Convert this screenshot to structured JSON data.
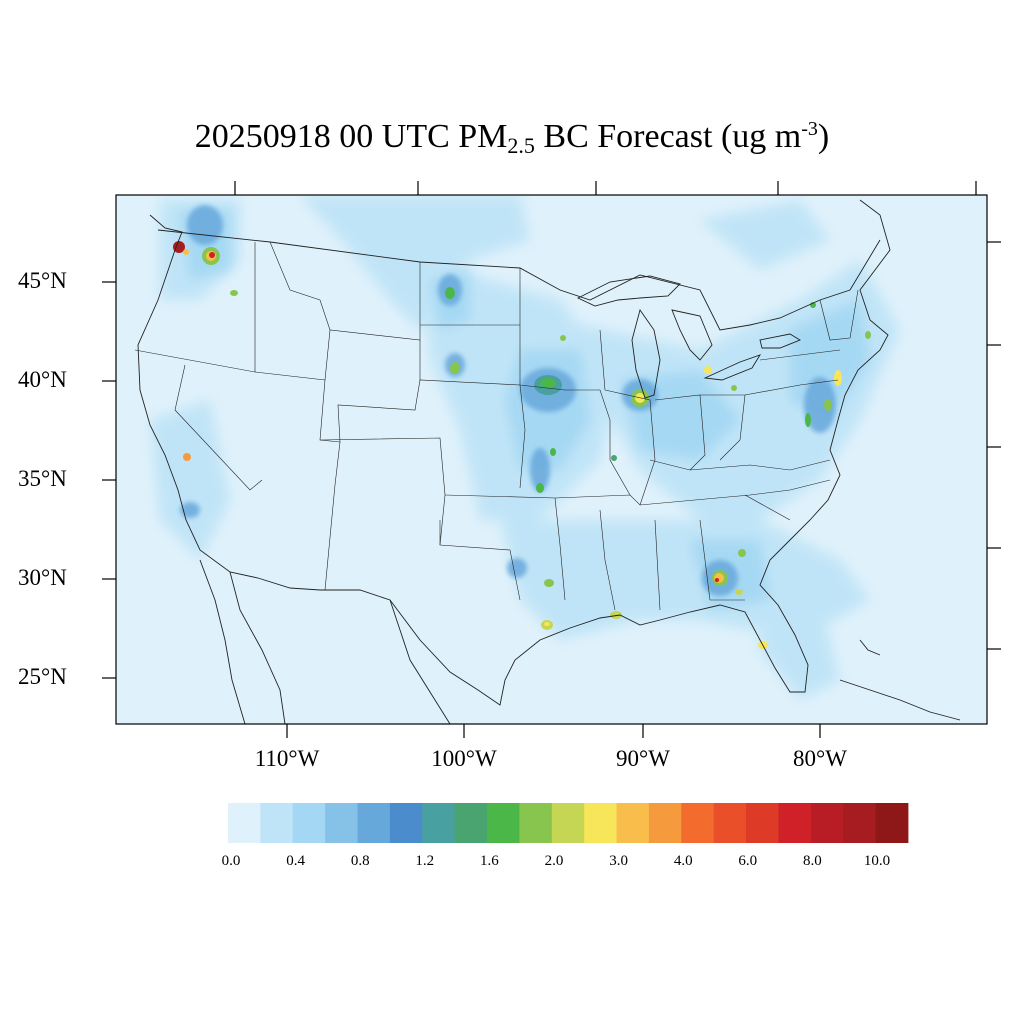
{
  "title": {
    "date": "20250918",
    "hour": "00",
    "tz": "UTC",
    "species_main": "PM",
    "species_sub": "2.5",
    "species_suffix": "BC Forecast (ug m",
    "units_exp": "-3",
    "units_close": ")"
  },
  "axes": {
    "lat_labels": [
      "45°N",
      "40°N",
      "35°N",
      "30°N",
      "25°N"
    ],
    "lon_labels": [
      "110°W",
      "100°W",
      "90°W",
      "80°W"
    ]
  },
  "colorbar": {
    "labels": [
      "0.0",
      "0.4",
      "0.8",
      "1.2",
      "1.6",
      "2.0",
      "3.0",
      "4.0",
      "6.0",
      "8.0",
      "10.0"
    ],
    "colors": [
      "#dff1fb",
      "#bfe4f7",
      "#a3d7f3",
      "#86c2e8",
      "#67a8db",
      "#4a8ccc",
      "#49a0a0",
      "#4aa470",
      "#4cb749",
      "#87c54f",
      "#c5d655",
      "#f7e55a",
      "#f8bd4b",
      "#f69a3e",
      "#f36b2d",
      "#e9502a",
      "#dd3a27",
      "#d12128",
      "#b81c24",
      "#a71c20",
      "#8e1718"
    ]
  },
  "colors": {
    "background": "#dff1fb",
    "border": "#000000"
  }
}
